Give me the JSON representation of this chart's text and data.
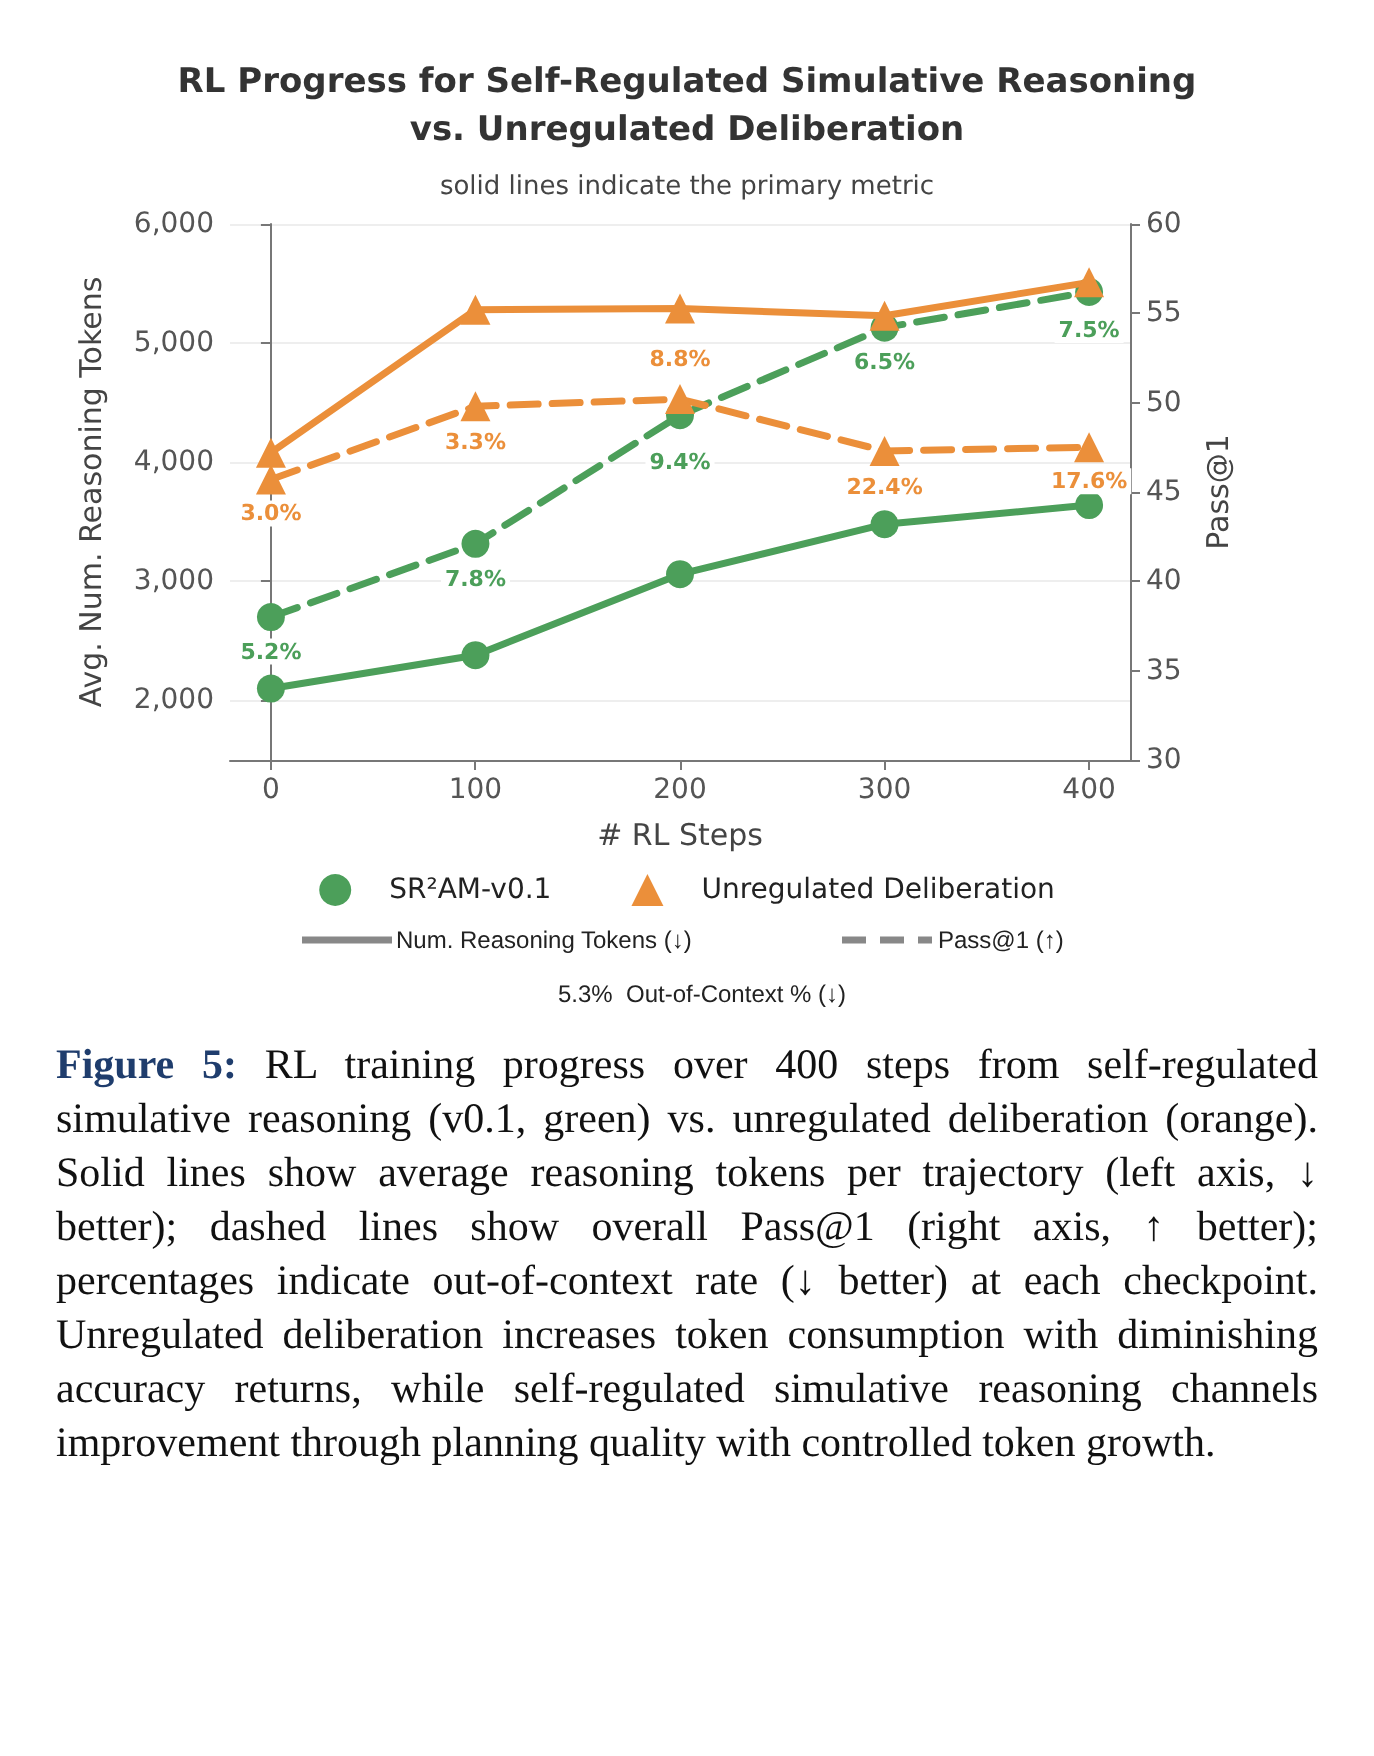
{
  "chart_data": {
    "type": "line",
    "title": "RL Progress for Self-Regulated Simulative Reasoning\nvs. Unregulated Deliberation",
    "subtitle": "solid lines indicate the primary metric",
    "xlabel": "# RL Steps",
    "ylabel": "Avg. Num. Reasoning Tokens",
    "y2label": "Pass@1",
    "x": [
      0,
      100,
      200,
      300,
      400
    ],
    "series": [
      {
        "name": "SR²AM-v0.1",
        "color": "#4c9f5a",
        "marker": "circle",
        "line_style": "solid",
        "values": [
          2100,
          2380,
          3060,
          3480,
          3640
        ]
      },
      {
        "color": "#4c9f5a",
        "marker": "circle",
        "line_style": "dashed",
        "axis": "y2",
        "values": [
          38.0,
          42.1,
          49.3,
          54.2,
          56.2
        ]
      },
      {
        "name": "Unregulated Deliberation",
        "color": "#eb8f3a",
        "marker": "triangle",
        "line_style": "solid",
        "values": [
          4080,
          5280,
          5290,
          5230,
          5510
        ]
      },
      {
        "color": "#eb8f3a",
        "marker": "triangle",
        "line_style": "dashed",
        "axis": "y2",
        "values": [
          45.7,
          49.8,
          50.2,
          47.3,
          47.5
        ]
      }
    ],
    "xlim": [
      -20,
      420
    ],
    "xticks": [
      0,
      100,
      200,
      300,
      400
    ],
    "ylim": [
      1500,
      6000
    ],
    "yticks": [
      {
        "value": 2000,
        "label": "2,000"
      },
      {
        "value": 3000,
        "label": "3,000"
      },
      {
        "value": 4000,
        "label": "4,000"
      },
      {
        "value": 5000,
        "label": "5,000"
      },
      {
        "value": 6000,
        "label": "6,000"
      }
    ],
    "y2lim": [
      30,
      60
    ],
    "y2ticks": [
      30,
      35,
      40,
      45,
      50,
      55,
      60
    ],
    "grid": "y",
    "legend": "bottom",
    "annotations": [
      "Num. Reasoning Tokens (↓)",
      "Pass@1 (↑)",
      "5.3%  Out-of-Context % (↓)",
      "Figure 5: RL training progress over 400 steps from self-regulated simulative reasoning (v0.1, green) vs. unregulated deliberation (orange). Solid lines show average reasoning tokens per trajectory (left axis, ↓ better); dashed lines show overall Pass@1 (right axis, ↑ better); percentages indicate out-of-context rate (↓ better) at each checkpoint. Unregulated deliberation increases token consumption with diminishing accuracy returns, while self-regulated simulative reasoning channels improvement through planning quality with controlled token growth.",
      {
        "text": "5.2%",
        "x": 0,
        "y": 2410
      },
      {
        "text": "7.8%",
        "x": 100,
        "y": 3020
      },
      {
        "text": "9.4%",
        "x": 200,
        "y": 4000
      },
      {
        "text": "6.5%",
        "x": 300,
        "y": 4840
      },
      {
        "text": "7.5%",
        "x": 400,
        "y": 5110
      },
      {
        "text": "3.0%",
        "x": 0,
        "y": 3570
      },
      {
        "text": "3.3%",
        "x": 100,
        "y": 4170
      },
      {
        "text": "8.8%",
        "x": 200,
        "y": 4870
      },
      {
        "text": "22.4%",
        "x": 300,
        "y": 3790
      },
      {
        "text": "17.6%",
        "x": 400,
        "y": 3840
      }
    ]
  }
}
